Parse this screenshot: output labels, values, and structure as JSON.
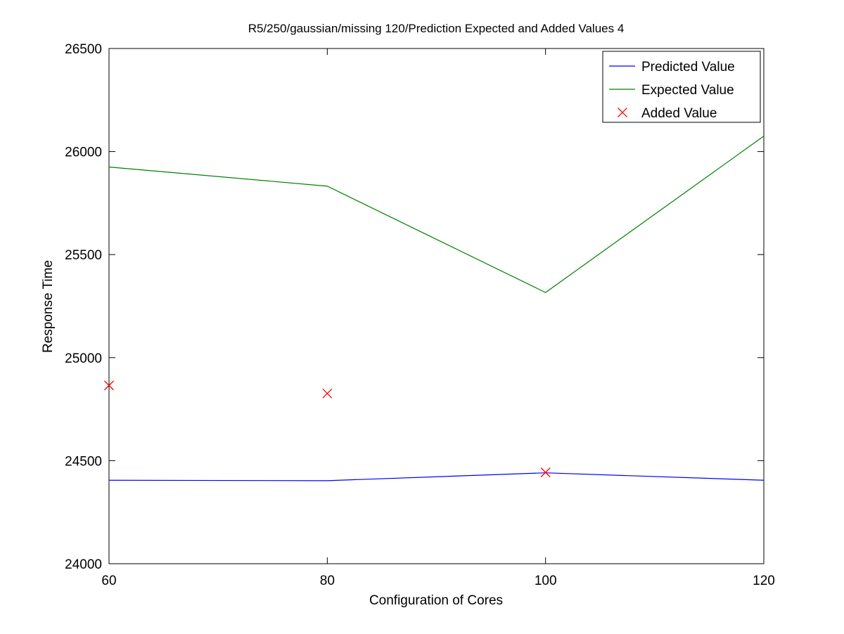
{
  "chart_data": {
    "type": "line",
    "title": "R5/250/gaussian/missing 120/Prediction Expected and Added Values 4",
    "xlabel": "Configuration of Cores",
    "ylabel": "Response Time",
    "x": [
      60,
      80,
      100,
      120
    ],
    "xlim": [
      60,
      120
    ],
    "ylim": [
      24000,
      26500
    ],
    "xticks": [
      60,
      80,
      100,
      120
    ],
    "yticks": [
      24000,
      24500,
      25000,
      25500,
      26000,
      26500
    ],
    "grid": false,
    "legend_position": "top-right",
    "series": [
      {
        "name": "Predicted Value",
        "kind": "line",
        "color": "#0000ff",
        "x": [
          60,
          80,
          100,
          120
        ],
        "values": [
          24405,
          24403,
          24441,
          24405
        ]
      },
      {
        "name": "Expected Value",
        "kind": "line",
        "color": "#008000",
        "x": [
          60,
          80,
          100,
          120
        ],
        "values": [
          25925,
          25832,
          25316,
          26075
        ]
      },
      {
        "name": "Added Value",
        "kind": "marker",
        "marker": "x",
        "color": "#ff0000",
        "x": [
          60,
          80,
          100
        ],
        "values": [
          24865,
          24826,
          24443
        ]
      }
    ]
  }
}
